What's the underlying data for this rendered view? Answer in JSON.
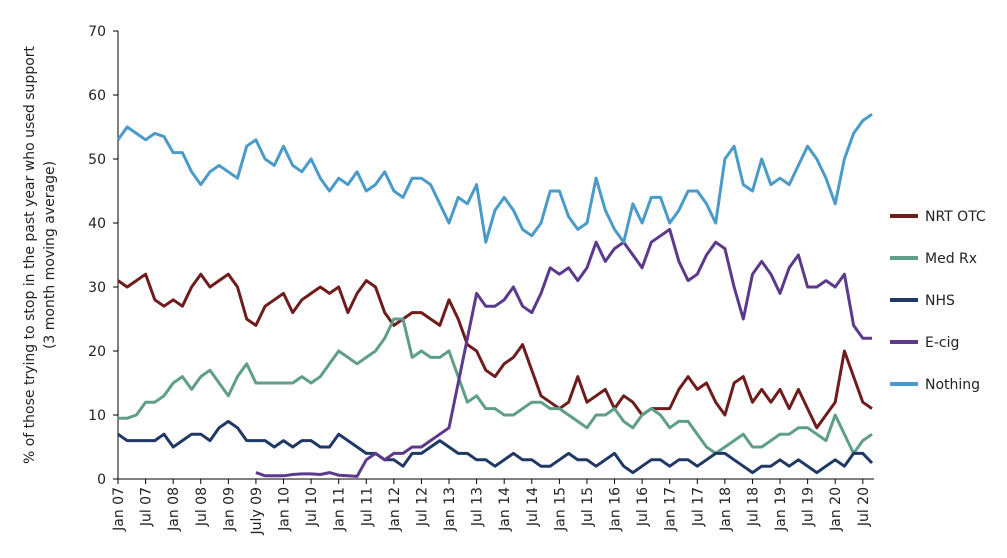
{
  "chart_data": {
    "type": "line",
    "y_label": [
      "% of those trying to stop in the past year who used support",
      "(3 month moving average)"
    ],
    "categories": [
      "Jan 07",
      null,
      null,
      "Jul 07",
      null,
      null,
      "Jan 08",
      null,
      null,
      "Jul 08",
      null,
      null,
      "Jan 09",
      null,
      null,
      "July 09",
      null,
      null,
      "Jan 10",
      null,
      null,
      "Jul 10",
      null,
      null,
      "Jan 11",
      null,
      null,
      "Jul 11",
      null,
      null,
      "Jan 12",
      null,
      null,
      "Jul 12",
      null,
      null,
      "Jan 13",
      null,
      null,
      "Jul 13",
      null,
      null,
      "Jan 14",
      null,
      null,
      "Jul 14",
      null,
      null,
      "Jan 15",
      null,
      null,
      "Jul 15",
      null,
      null,
      "Jan 16",
      null,
      null,
      "Jul 16",
      null,
      null,
      "Jan 17",
      null,
      null,
      "Jul 17",
      null,
      null,
      "Jan 18",
      null,
      null,
      "Jul 18",
      null,
      null,
      "Jan 19",
      null,
      null,
      "Jul 19",
      null,
      null,
      "Jan 20",
      null,
      null,
      "Jul 20",
      null
    ],
    "ylim": [
      0,
      70
    ],
    "yticks": [
      0,
      10,
      20,
      30,
      40,
      50,
      60,
      70
    ],
    "series": [
      {
        "name": "NRT OTC",
        "color": "#6e1c1c",
        "values": [
          31,
          30,
          31,
          32,
          28,
          27,
          28,
          27,
          30,
          32,
          30,
          31,
          32,
          30,
          25,
          24,
          27,
          28,
          29,
          26,
          28,
          29,
          30,
          29,
          30,
          26,
          29,
          31,
          30,
          26,
          24,
          25,
          26,
          26,
          25,
          24,
          28,
          25,
          21,
          20,
          17,
          16,
          18,
          19,
          21,
          17,
          13,
          12,
          11,
          12,
          16,
          12,
          13,
          14,
          11,
          13,
          12,
          10,
          11,
          11,
          11,
          14,
          16,
          14,
          15,
          12,
          10,
          15,
          16,
          12,
          14,
          12,
          14,
          11,
          14,
          11,
          8,
          10,
          12,
          20,
          16,
          12,
          11
        ]
      },
      {
        "name": "Med Rx",
        "color": "#5f9e87",
        "values": [
          9.5,
          9.5,
          10,
          12,
          12,
          13,
          15,
          16,
          14,
          16,
          17,
          15,
          13,
          16,
          18,
          15,
          15,
          15,
          15,
          15,
          16,
          15,
          16,
          18,
          20,
          19,
          18,
          19,
          20,
          22,
          25,
          25,
          19,
          20,
          19,
          19,
          20,
          16,
          12,
          13,
          11,
          11,
          10,
          10,
          11,
          12,
          12,
          11,
          11,
          10,
          9,
          8,
          10,
          10,
          11,
          9,
          8,
          10,
          11,
          10,
          8,
          9,
          9,
          7,
          5,
          4,
          5,
          6,
          7,
          5,
          5,
          6,
          7,
          7,
          8,
          8,
          7,
          6,
          10,
          7,
          4,
          6,
          7
        ]
      },
      {
        "name": "NHS",
        "color": "#1f3864",
        "values": [
          7,
          6,
          6,
          6,
          6,
          7,
          5,
          6,
          7,
          7,
          6,
          8,
          9,
          8,
          6,
          6,
          6,
          5,
          6,
          5,
          6,
          6,
          5,
          5,
          7,
          6,
          5,
          4,
          4,
          3,
          3,
          2,
          4,
          4,
          5,
          6,
          5,
          4,
          4,
          3,
          3,
          2,
          3,
          4,
          3,
          3,
          2,
          2,
          3,
          4,
          3,
          3,
          2,
          3,
          4,
          2,
          1,
          2,
          3,
          3,
          2,
          3,
          3,
          2,
          3,
          4,
          4,
          3,
          2,
          1,
          2,
          2,
          3,
          2,
          3,
          2,
          1,
          2,
          3,
          2,
          4,
          4,
          2.5
        ]
      },
      {
        "name": "E-cig",
        "color": "#5b3a8c",
        "values": [
          null,
          null,
          null,
          null,
          null,
          null,
          null,
          null,
          null,
          null,
          null,
          null,
          null,
          null,
          null,
          1,
          0.5,
          0.5,
          0.5,
          0.7,
          0.8,
          0.8,
          0.7,
          1,
          0.6,
          0.5,
          0.4,
          3,
          4,
          3,
          4,
          4,
          5,
          5,
          6,
          7,
          8,
          15,
          22,
          29,
          27,
          27,
          28,
          30,
          27,
          26,
          29,
          33,
          32,
          33,
          31,
          33,
          37,
          34,
          36,
          37,
          35,
          33,
          37,
          38,
          39,
          34,
          31,
          32,
          35,
          37,
          36,
          30,
          25,
          32,
          34,
          32,
          29,
          33,
          35,
          30,
          30,
          31,
          30,
          32,
          24,
          22,
          22
        ]
      },
      {
        "name": "Nothing",
        "color": "#4a9bc9",
        "values": [
          53,
          55,
          54,
          53,
          54,
          53.5,
          51,
          51,
          48,
          46,
          48,
          49,
          48,
          47,
          52,
          53,
          50,
          49,
          52,
          49,
          48,
          50,
          47,
          45,
          47,
          46,
          48,
          45,
          46,
          48,
          45,
          44,
          47,
          47,
          46,
          43,
          40,
          44,
          43,
          46,
          37,
          42,
          44,
          42,
          39,
          38,
          40,
          45,
          45,
          41,
          39,
          40,
          47,
          42,
          39,
          37,
          43,
          40,
          44,
          44,
          40,
          42,
          45,
          45,
          43,
          40,
          50,
          52,
          46,
          45,
          50,
          46,
          47,
          46,
          49,
          52,
          50,
          47,
          43,
          50,
          54,
          56,
          57
        ]
      }
    ]
  }
}
